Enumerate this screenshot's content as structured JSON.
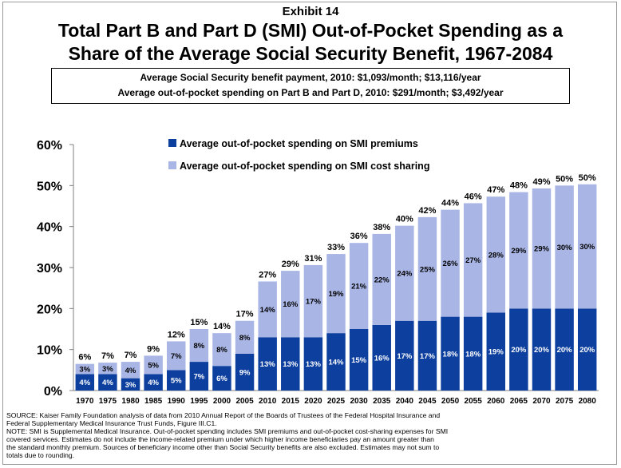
{
  "header": {
    "exhibit": "Exhibit 14",
    "title_line1": "Total Part B and Part D (SMI) Out-of-Pocket Spending as a",
    "title_line2": "Share of the Average Social Security Benefit, 1967-2084"
  },
  "infobox": {
    "line1": "Average Social Security benefit payment, 2010: $1,093/month; $13,116/year",
    "line2": "Average out-of-pocket spending on Part B and Part D, 2010: $291/month; $3,492/year"
  },
  "colors": {
    "premiums": "#0c3f9e",
    "cost_sharing": "#a9b6e5"
  },
  "chart_data": {
    "type": "bar",
    "stacked": true,
    "categories": [
      "1970",
      "1975",
      "1980",
      "1985",
      "1990",
      "1995",
      "2000",
      "2005",
      "2010",
      "2015",
      "2020",
      "2025",
      "2030",
      "2035",
      "2040",
      "2045",
      "2050",
      "2055",
      "2060",
      "2065",
      "2070",
      "2075",
      "2080"
    ],
    "series": [
      {
        "name": "Average out-of-pocket spending on SMI premiums",
        "values": [
          4,
          4,
          3,
          4,
          5,
          7,
          6,
          9,
          13,
          13,
          13,
          14,
          15,
          16,
          17,
          17,
          18,
          18,
          19,
          20,
          20,
          20,
          20
        ],
        "labels": [
          "4%",
          "4%",
          "3%",
          "4%",
          "5%",
          "7%",
          "6%",
          "9%",
          "13%",
          "13%",
          "13%",
          "14%",
          "15%",
          "16%",
          "17%",
          "17%",
          "18%",
          "18%",
          "19%",
          "20%",
          "20%",
          "20%",
          "20%"
        ]
      },
      {
        "name": "Average out-of-pocket spending on SMI cost sharing",
        "values": [
          3,
          3,
          4,
          5,
          7,
          8,
          8,
          8,
          14,
          16,
          17,
          19,
          21,
          22,
          24,
          25,
          26,
          27,
          28,
          29,
          29,
          30,
          30
        ],
        "labels": [
          "3%",
          "3%",
          "4%",
          "5%",
          "7%",
          "8%",
          "8%",
          "8%",
          "14%",
          "16%",
          "17%",
          "19%",
          "21%",
          "22%",
          "24%",
          "25%",
          "26%",
          "27%",
          "28%",
          "29%",
          "29%",
          "30%",
          "30%"
        ]
      }
    ],
    "totals": [
      6.5,
      6.8,
      7.0,
      8.5,
      12.0,
      15.0,
      14.0,
      17.0,
      26.6,
      29.2,
      30.6,
      33.3,
      36.0,
      38.2,
      40.2,
      42.3,
      44.1,
      45.7,
      47.3,
      48.4,
      49.3,
      50.0,
      50.3
    ],
    "total_labels": [
      "6%",
      "7%",
      "7%",
      "9%",
      "12%",
      "15%",
      "14%",
      "17%",
      "27%",
      "29%",
      "31%",
      "33%",
      "36%",
      "38%",
      "40%",
      "42%",
      "44%",
      "46%",
      "47%",
      "48%",
      "49%",
      "50%",
      "50%"
    ],
    "ylim": [
      0,
      60
    ],
    "yticks": [
      0,
      10,
      20,
      30,
      40,
      50,
      60
    ],
    "ytick_labels": [
      "0%",
      "10%",
      "20%",
      "30%",
      "40%",
      "50%",
      "60%"
    ],
    "legend_position": "top",
    "grid": false
  },
  "notes": {
    "source_line1": "SOURCE:  Kaiser Family Foundation analysis of data from 2010 Annual Report of the Boards of Trustees of the Federal Hospital Insurance and",
    "source_line2": "Federal Supplementary Medical Insurance Trust Funds, Figure III.C1.",
    "note_line1": "NOTE:  SMI is Supplemental Medical Insurance. Out-of-pocket spending includes SMI premiums and out-of-pocket cost-sharing expenses for SMI",
    "note_line2": "covered services. Estimates do not include the income-related premium under which higher income beneficiaries pay an amount greater than",
    "note_line3": "the standard monthly premium. Sources of beneficiary income other than Social Security benefits are also excluded. Estimates may not sum to",
    "note_line4": "totals due to rounding."
  }
}
